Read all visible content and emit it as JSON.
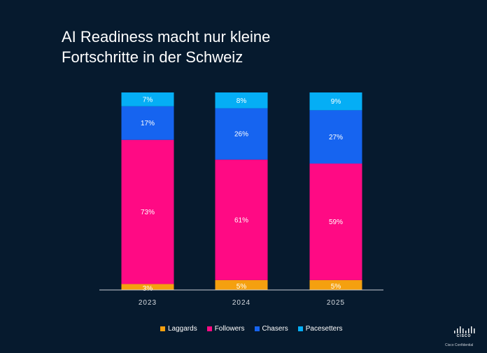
{
  "title_lines": [
    "AI Readiness macht nur kleine",
    "Fortschritte in der Schweiz"
  ],
  "chart_data": {
    "type": "bar",
    "stacked": true,
    "categories": [
      "2023",
      "2024",
      "2025"
    ],
    "series": [
      {
        "name": "Laggards",
        "color": "#f5a00f",
        "values": [
          3,
          5,
          5
        ],
        "labels": [
          "3%",
          "5%",
          "5%"
        ]
      },
      {
        "name": "Followers",
        "color": "#ff0a84",
        "values": [
          73,
          61,
          59
        ],
        "labels": [
          "73%",
          "61%",
          "59%"
        ]
      },
      {
        "name": "Chasers",
        "color": "#1664f0",
        "values": [
          17,
          26,
          27
        ],
        "labels": [
          "17%",
          "26%",
          "27%"
        ]
      },
      {
        "name": "Pacesetters",
        "color": "#05aef5",
        "values": [
          7,
          8,
          9
        ],
        "labels": [
          "7%",
          "8%",
          "9%"
        ]
      }
    ],
    "ylim": [
      0,
      100
    ],
    "grid": false,
    "legend_position": "bottom"
  },
  "footer": {
    "logo_text": "CISCO",
    "confidential": "Cisco Confidential"
  }
}
